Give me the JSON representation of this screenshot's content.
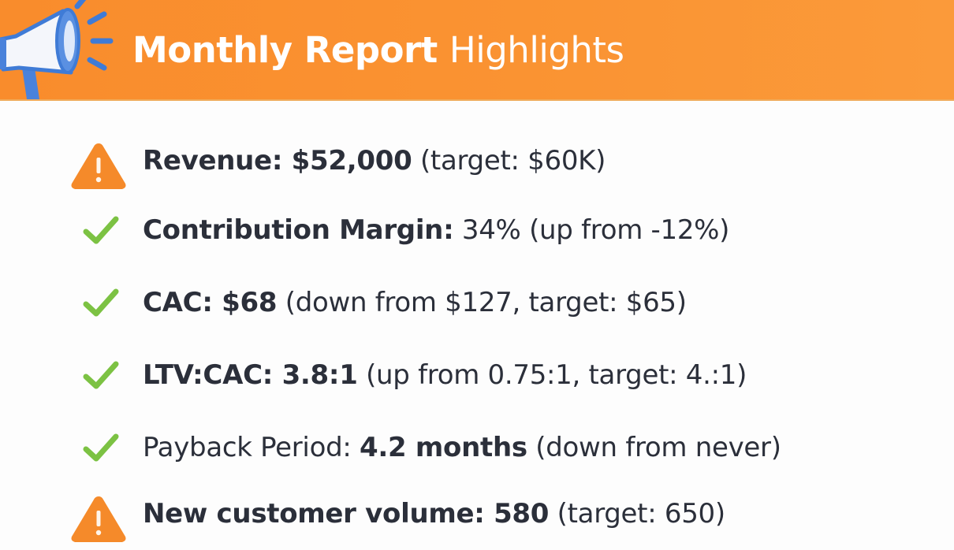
{
  "header": {
    "title_bold": "Monthly Report",
    "title_light": "Highlights",
    "icon": "megaphone-icon"
  },
  "colors": {
    "header_bg": "#f98c2c",
    "warning": "#f58a2a",
    "check": "#7cc243",
    "text": "#2b2f3a"
  },
  "items": [
    {
      "status": "warning",
      "parts": [
        {
          "text": "Revenue: ",
          "bold": true
        },
        {
          "text": "$52,000",
          "bold": true
        },
        {
          "text": " (target: $60K)",
          "bold": false
        }
      ]
    },
    {
      "status": "check",
      "parts": [
        {
          "text": "Contribution Margin:",
          "bold": true
        },
        {
          "text": " 34%",
          "bold": false
        },
        {
          "text": " (up from -12%)",
          "bold": false
        }
      ]
    },
    {
      "status": "check",
      "parts": [
        {
          "text": "CAC: ",
          "bold": true
        },
        {
          "text": "$68",
          "bold": true
        },
        {
          "text": " (down from $127, target: $65)",
          "bold": false
        }
      ]
    },
    {
      "status": "check",
      "parts": [
        {
          "text": "LTV:CAC: ",
          "bold": true
        },
        {
          "text": "3.8:1",
          "bold": true
        },
        {
          "text": " (up from 0.75:1, target: 4.:1)",
          "bold": false
        }
      ]
    },
    {
      "status": "check",
      "parts": [
        {
          "text": "Payback Period: ",
          "bold": false
        },
        {
          "text": "4.2 months",
          "bold": true
        },
        {
          "text": " (down from never)",
          "bold": false
        }
      ]
    },
    {
      "status": "warning",
      "parts": [
        {
          "text": "New customer volume: ",
          "bold": true
        },
        {
          "text": "580",
          "bold": true
        },
        {
          "text": " (target: 650)",
          "bold": false
        }
      ]
    }
  ]
}
